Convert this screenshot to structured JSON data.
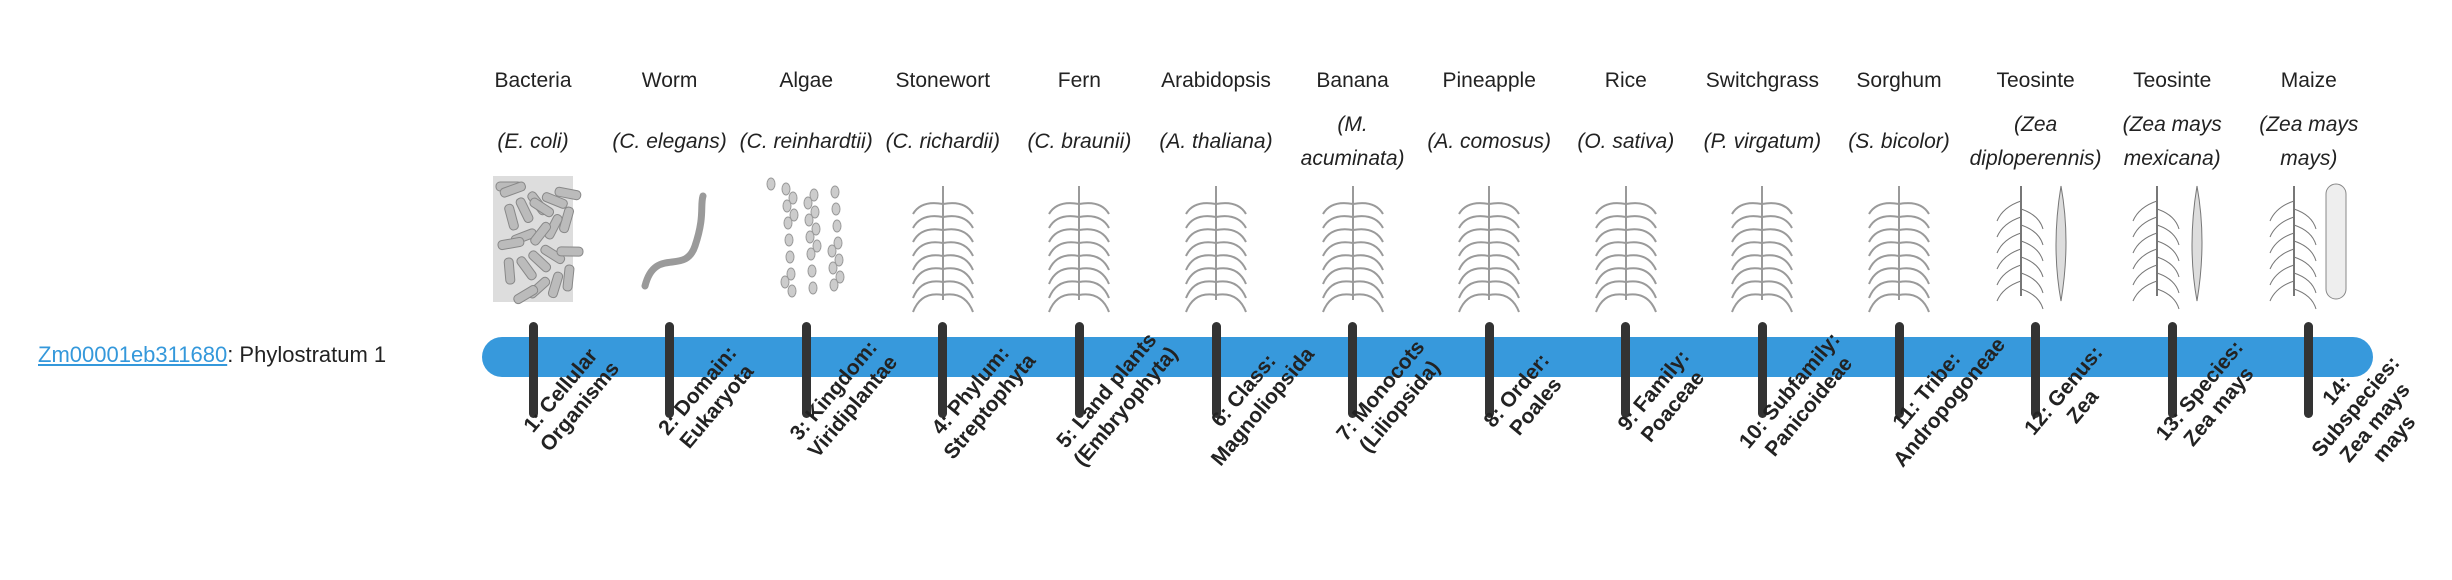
{
  "gene": {
    "id": "Zm00001eb311680",
    "suffix": ": Phylostratum 1"
  },
  "colors": {
    "bar": "#3799dc",
    "tick": "#333333",
    "link": "#3498db"
  },
  "strata": [
    {
      "common": "Bacteria",
      "scientific": "(E. coli)",
      "stage": "1: Cellular Organisms",
      "icon": "bacteria-illustration"
    },
    {
      "common": "Worm",
      "scientific": "(C. elegans)",
      "stage": "2: Domain: Eukaryota",
      "icon": "worm-illustration"
    },
    {
      "common": "Algae",
      "scientific": "(C. reinhardtii)",
      "stage": "3: Kingdom: Viridiplantae",
      "icon": "algae-illustration"
    },
    {
      "common": "Stonewort",
      "scientific": "(C. richardii)",
      "stage": "4: Phylum: Streptophyta",
      "icon": "stonewort-illustration"
    },
    {
      "common": "Fern",
      "scientific": "(C. braunii)",
      "stage": "5: Land plants (Embryophyta)",
      "icon": "fern-illustration"
    },
    {
      "common": "Arabidopsis",
      "scientific": "(A. thaliana)",
      "stage": "6: Class: Magnoliopsida",
      "icon": "arabidopsis-illustration"
    },
    {
      "common": "Banana",
      "scientific": "(M. acuminata)",
      "stage": "7: Monocots (Liliopsida)",
      "icon": "banana-illustration"
    },
    {
      "common": "Pineapple",
      "scientific": "(A. comosus)",
      "stage": "8: Order: Poales",
      "icon": "pineapple-illustration"
    },
    {
      "common": "Rice",
      "scientific": "(O. sativa)",
      "stage": "9: Family: Poaceae",
      "icon": "rice-illustration"
    },
    {
      "common": "Switchgrass",
      "scientific": "(P. virgatum)",
      "stage": "10: Subfamily: Panicoideae",
      "icon": "switchgrass-illustration"
    },
    {
      "common": "Sorghum",
      "scientific": "(S. bicolor)",
      "stage": "11: Tribe: Andropogoneae",
      "icon": "sorghum-illustration"
    },
    {
      "common": "Teosinte",
      "scientific": "(Zea diploperennis)",
      "stage": "12: Genus: Zea",
      "icon": "teosinte-illustration"
    },
    {
      "common": "Teosinte",
      "scientific": "(Zea mays mexicana)",
      "stage": "13: Species: Zea mays",
      "icon": "teosinte-mexicana-illustration"
    },
    {
      "common": "Maize",
      "scientific": "(Zea mays mays)",
      "stage": "14: Subspecies: Zea mays mays",
      "icon": "maize-illustration"
    }
  ]
}
